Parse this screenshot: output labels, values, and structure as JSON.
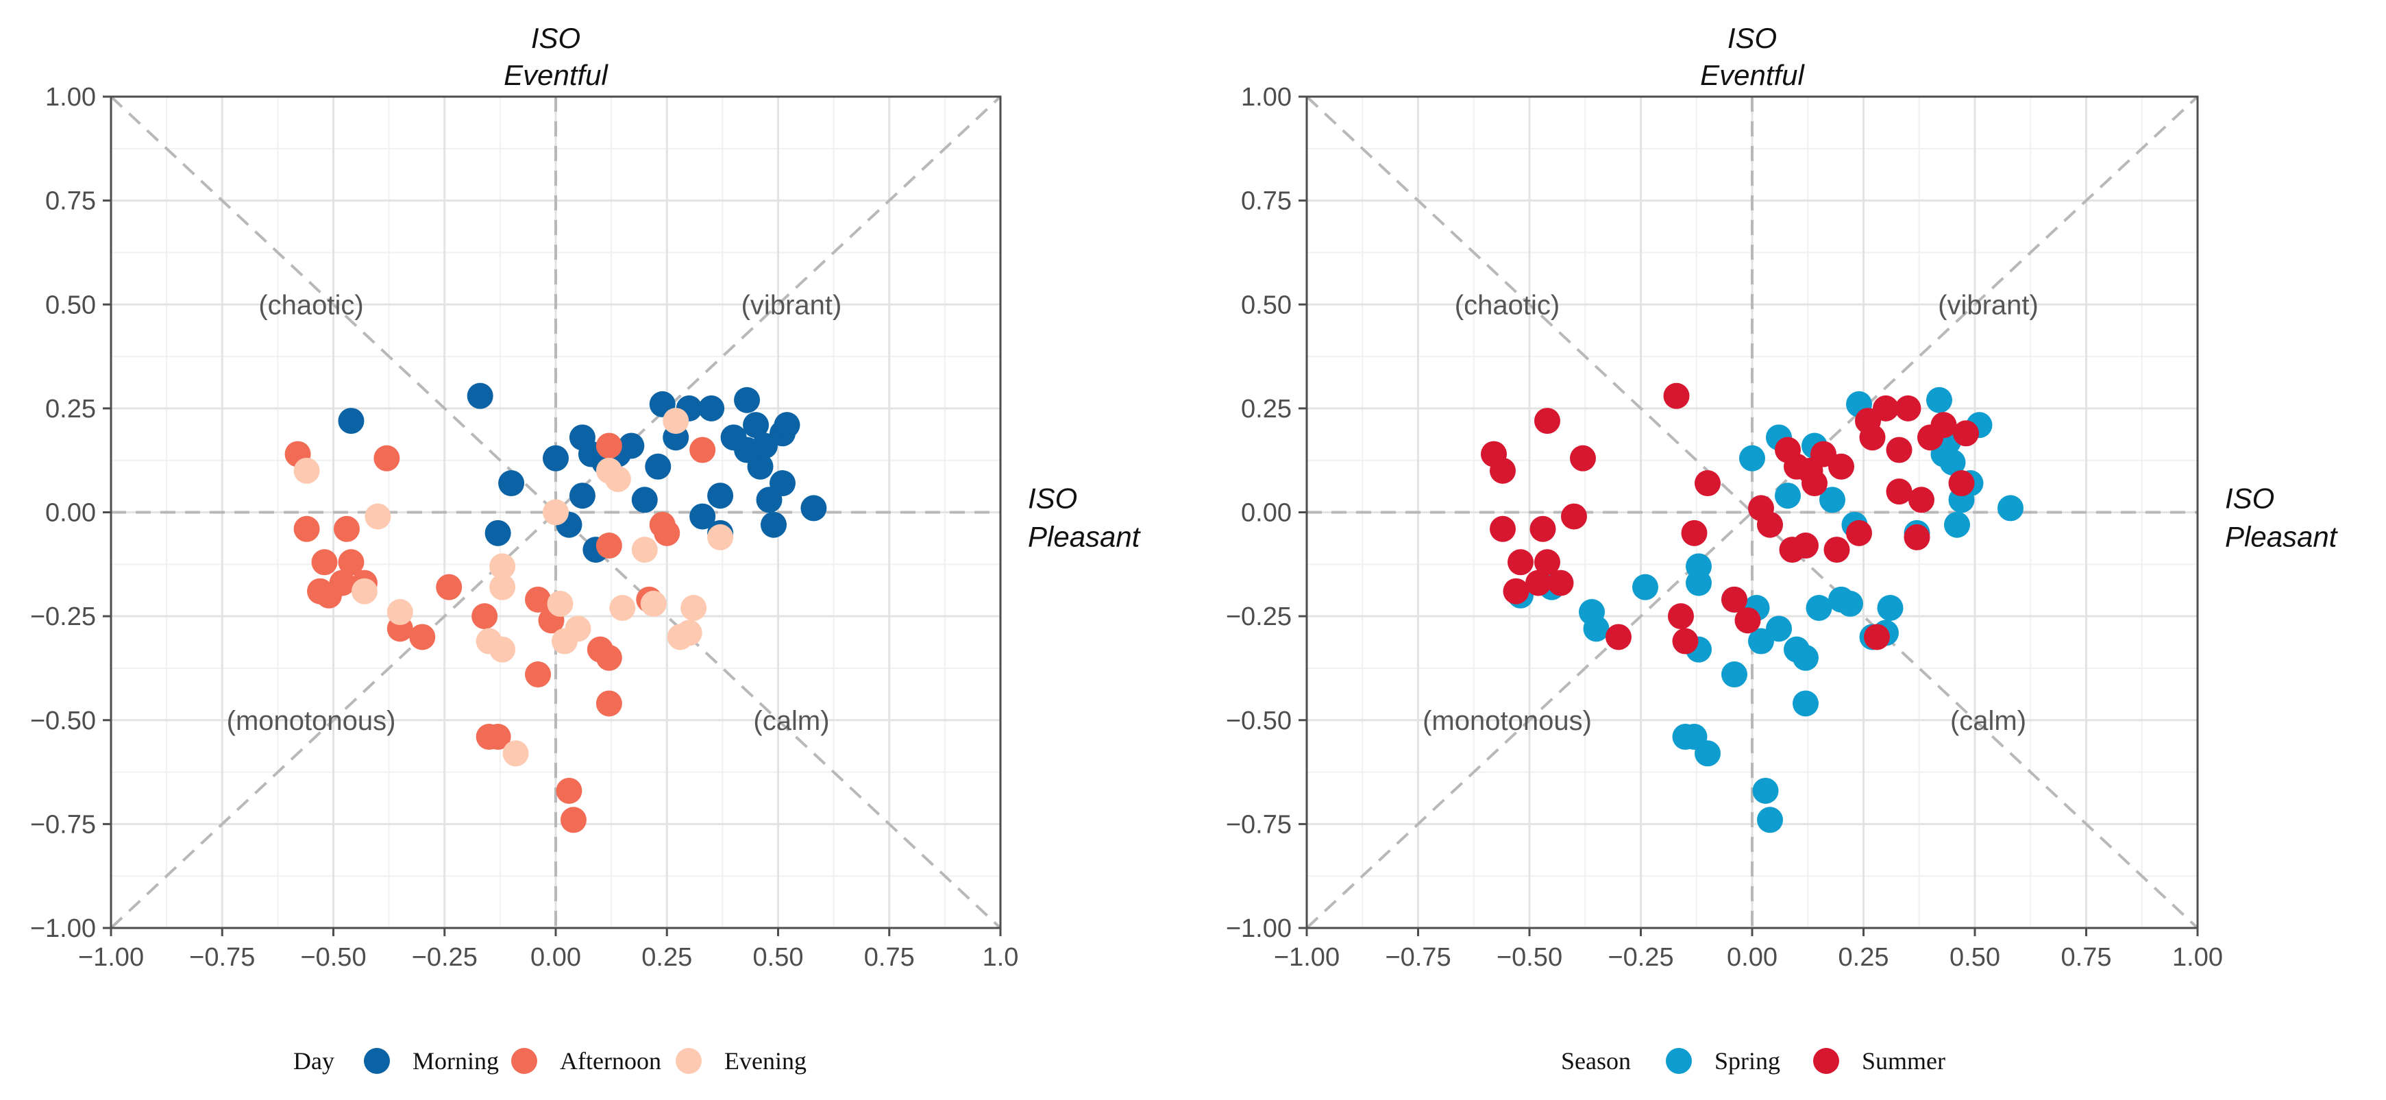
{
  "chart_data": [
    {
      "type": "scatter",
      "title": "",
      "xlim": [
        -1.0,
        1.0
      ],
      "ylim": [
        -1.0,
        1.0
      ],
      "x_ticks": [
        "−1.00",
        "−0.75",
        "−0.50",
        "−0.25",
        "0.00",
        "0.25",
        "0.50",
        "0.75",
        "1.0"
      ],
      "y_ticks": [
        "1.00",
        "0.75",
        "0.50",
        "0.25",
        "0.00",
        "−0.25",
        "−0.50",
        "−0.75",
        "−1.00"
      ],
      "axis_titles": {
        "top_line1": "ISO",
        "top_line2": "Eventful",
        "right_line1": "ISO",
        "right_line2": "Pleasant"
      },
      "quadrant_labels": {
        "chaotic": "(chaotic)",
        "vibrant": "(vibrant)",
        "monotonous": "(monotonous)",
        "calm": "(calm)"
      },
      "grid": true,
      "diagonals": true,
      "legend_title": "Day",
      "legend_position": "bottom",
      "series": [
        {
          "name": "Morning",
          "color": "#0b63a5",
          "points": [
            [
              -0.46,
              0.22
            ],
            [
              -0.17,
              0.28
            ],
            [
              -0.1,
              0.07
            ],
            [
              -0.13,
              -0.05
            ],
            [
              0.0,
              0.13
            ],
            [
              0.03,
              -0.03
            ],
            [
              0.06,
              0.18
            ],
            [
              0.06,
              0.04
            ],
            [
              0.08,
              0.14
            ],
            [
              0.09,
              -0.09
            ],
            [
              0.11,
              0.12
            ],
            [
              0.14,
              0.14
            ],
            [
              0.17,
              0.16
            ],
            [
              0.2,
              0.03
            ],
            [
              0.23,
              0.11
            ],
            [
              0.24,
              0.26
            ],
            [
              0.27,
              0.18
            ],
            [
              0.3,
              0.25
            ],
            [
              0.35,
              0.25
            ],
            [
              0.33,
              -0.01
            ],
            [
              0.37,
              -0.05
            ],
            [
              0.37,
              0.04
            ],
            [
              0.4,
              0.18
            ],
            [
              0.43,
              0.27
            ],
            [
              0.43,
              0.15
            ],
            [
              0.45,
              0.21
            ],
            [
              0.46,
              0.11
            ],
            [
              0.47,
              0.16
            ],
            [
              0.48,
              0.03
            ],
            [
              0.49,
              -0.03
            ],
            [
              0.51,
              0.19
            ],
            [
              0.52,
              0.21
            ],
            [
              0.51,
              0.07
            ],
            [
              0.58,
              0.01
            ]
          ]
        },
        {
          "name": "Afternoon",
          "color": "#f26b55",
          "points": [
            [
              -0.58,
              0.14
            ],
            [
              -0.56,
              -0.04
            ],
            [
              -0.53,
              -0.19
            ],
            [
              -0.52,
              -0.12
            ],
            [
              -0.51,
              -0.2
            ],
            [
              -0.48,
              -0.17
            ],
            [
              -0.47,
              -0.04
            ],
            [
              -0.46,
              -0.12
            ],
            [
              -0.43,
              -0.17
            ],
            [
              -0.38,
              0.13
            ],
            [
              -0.35,
              -0.28
            ],
            [
              -0.3,
              -0.3
            ],
            [
              -0.24,
              -0.18
            ],
            [
              -0.16,
              -0.25
            ],
            [
              -0.15,
              -0.54
            ],
            [
              -0.13,
              -0.54
            ],
            [
              -0.04,
              -0.39
            ],
            [
              -0.04,
              -0.21
            ],
            [
              -0.01,
              -0.26
            ],
            [
              0.03,
              -0.67
            ],
            [
              0.04,
              -0.74
            ],
            [
              0.1,
              -0.33
            ],
            [
              0.12,
              -0.35
            ],
            [
              0.12,
              -0.46
            ],
            [
              0.12,
              0.16
            ],
            [
              0.12,
              -0.08
            ],
            [
              0.21,
              -0.21
            ],
            [
              0.24,
              -0.03
            ],
            [
              0.25,
              -0.05
            ],
            [
              0.33,
              0.15
            ]
          ]
        },
        {
          "name": "Evening",
          "color": "#fdc9b0",
          "points": [
            [
              -0.56,
              0.1
            ],
            [
              -0.4,
              -0.01
            ],
            [
              -0.43,
              -0.19
            ],
            [
              -0.35,
              -0.24
            ],
            [
              -0.15,
              -0.31
            ],
            [
              -0.12,
              -0.33
            ],
            [
              -0.12,
              -0.18
            ],
            [
              -0.12,
              -0.13
            ],
            [
              -0.09,
              -0.58
            ],
            [
              0.0,
              0.0
            ],
            [
              0.01,
              -0.22
            ],
            [
              0.02,
              -0.31
            ],
            [
              0.05,
              -0.28
            ],
            [
              0.12,
              0.1
            ],
            [
              0.14,
              0.08
            ],
            [
              0.15,
              -0.23
            ],
            [
              0.2,
              -0.09
            ],
            [
              0.22,
              -0.22
            ],
            [
              0.27,
              0.22
            ],
            [
              0.28,
              -0.3
            ],
            [
              0.3,
              -0.29
            ],
            [
              0.31,
              -0.23
            ],
            [
              0.37,
              -0.06
            ]
          ]
        }
      ]
    },
    {
      "type": "scatter",
      "title": "",
      "xlim": [
        -1.0,
        1.0
      ],
      "ylim": [
        -1.0,
        1.0
      ],
      "x_ticks": [
        "−1.00",
        "−0.75",
        "−0.50",
        "−0.25",
        "0.00",
        "0.25",
        "0.50",
        "0.75",
        "1.00"
      ],
      "y_ticks": [
        "1.00",
        "0.75",
        "0.50",
        "0.25",
        "0.00",
        "−0.25",
        "−0.50",
        "−0.75",
        "−1.00"
      ],
      "axis_titles": {
        "top_line1": "ISO",
        "top_line2": "Eventful",
        "right_line1": "ISO",
        "right_line2": "Pleasant"
      },
      "quadrant_labels": {
        "chaotic": "(chaotic)",
        "vibrant": "(vibrant)",
        "monotonous": "(monotonous)",
        "calm": "(calm)"
      },
      "grid": true,
      "diagonals": true,
      "legend_title": "Season",
      "legend_position": "bottom",
      "series": [
        {
          "name": "Spring",
          "color": "#0f9dcf",
          "points": [
            [
              -0.52,
              -0.2
            ],
            [
              -0.45,
              -0.18
            ],
            [
              -0.36,
              -0.24
            ],
            [
              -0.35,
              -0.28
            ],
            [
              -0.24,
              -0.18
            ],
            [
              -0.15,
              -0.54
            ],
            [
              -0.13,
              -0.54
            ],
            [
              -0.1,
              -0.58
            ],
            [
              -0.12,
              -0.13
            ],
            [
              -0.12,
              -0.17
            ],
            [
              -0.12,
              -0.33
            ],
            [
              -0.04,
              -0.39
            ],
            [
              -0.04,
              -0.21
            ],
            [
              0.0,
              0.13
            ],
            [
              0.02,
              -0.31
            ],
            [
              0.01,
              -0.23
            ],
            [
              0.03,
              -0.67
            ],
            [
              0.04,
              -0.74
            ],
            [
              0.06,
              0.18
            ],
            [
              0.06,
              -0.28
            ],
            [
              0.08,
              0.04
            ],
            [
              0.1,
              -0.33
            ],
            [
              0.12,
              -0.35
            ],
            [
              0.12,
              -0.46
            ],
            [
              0.14,
              0.16
            ],
            [
              0.15,
              -0.23
            ],
            [
              0.18,
              0.03
            ],
            [
              0.2,
              -0.21
            ],
            [
              0.22,
              -0.22
            ],
            [
              0.23,
              -0.03
            ],
            [
              0.24,
              0.26
            ],
            [
              0.27,
              -0.3
            ],
            [
              0.3,
              -0.29
            ],
            [
              0.31,
              -0.23
            ],
            [
              0.37,
              -0.05
            ],
            [
              0.42,
              0.27
            ],
            [
              0.43,
              0.14
            ],
            [
              0.44,
              0.17
            ],
            [
              0.45,
              0.12
            ],
            [
              0.46,
              -0.03
            ],
            [
              0.47,
              0.03
            ],
            [
              0.49,
              0.07
            ],
            [
              0.51,
              0.21
            ],
            [
              0.58,
              0.01
            ]
          ]
        },
        {
          "name": "Summer",
          "color": "#d7172f",
          "points": [
            [
              -0.58,
              0.14
            ],
            [
              -0.56,
              0.1
            ],
            [
              -0.56,
              -0.04
            ],
            [
              -0.53,
              -0.19
            ],
            [
              -0.52,
              -0.12
            ],
            [
              -0.48,
              -0.17
            ],
            [
              -0.47,
              -0.04
            ],
            [
              -0.46,
              -0.12
            ],
            [
              -0.46,
              0.22
            ],
            [
              -0.43,
              -0.17
            ],
            [
              -0.4,
              -0.01
            ],
            [
              -0.38,
              0.13
            ],
            [
              -0.3,
              -0.3
            ],
            [
              -0.17,
              0.28
            ],
            [
              -0.16,
              -0.25
            ],
            [
              -0.15,
              -0.31
            ],
            [
              -0.13,
              -0.05
            ],
            [
              -0.1,
              0.07
            ],
            [
              -0.04,
              -0.21
            ],
            [
              -0.01,
              -0.26
            ],
            [
              0.02,
              0.01
            ],
            [
              0.04,
              -0.03
            ],
            [
              0.08,
              0.15
            ],
            [
              0.09,
              -0.09
            ],
            [
              0.1,
              0.11
            ],
            [
              0.12,
              -0.08
            ],
            [
              0.13,
              0.1
            ],
            [
              0.14,
              0.07
            ],
            [
              0.16,
              0.14
            ],
            [
              0.19,
              -0.09
            ],
            [
              0.2,
              0.11
            ],
            [
              0.24,
              -0.05
            ],
            [
              0.26,
              0.22
            ],
            [
              0.27,
              0.18
            ],
            [
              0.28,
              -0.3
            ],
            [
              0.3,
              0.25
            ],
            [
              0.33,
              0.15
            ],
            [
              0.33,
              0.05
            ],
            [
              0.35,
              0.25
            ],
            [
              0.37,
              -0.06
            ],
            [
              0.38,
              0.03
            ],
            [
              0.4,
              0.18
            ],
            [
              0.43,
              0.21
            ],
            [
              0.47,
              0.07
            ],
            [
              0.48,
              0.19
            ]
          ]
        }
      ]
    }
  ]
}
